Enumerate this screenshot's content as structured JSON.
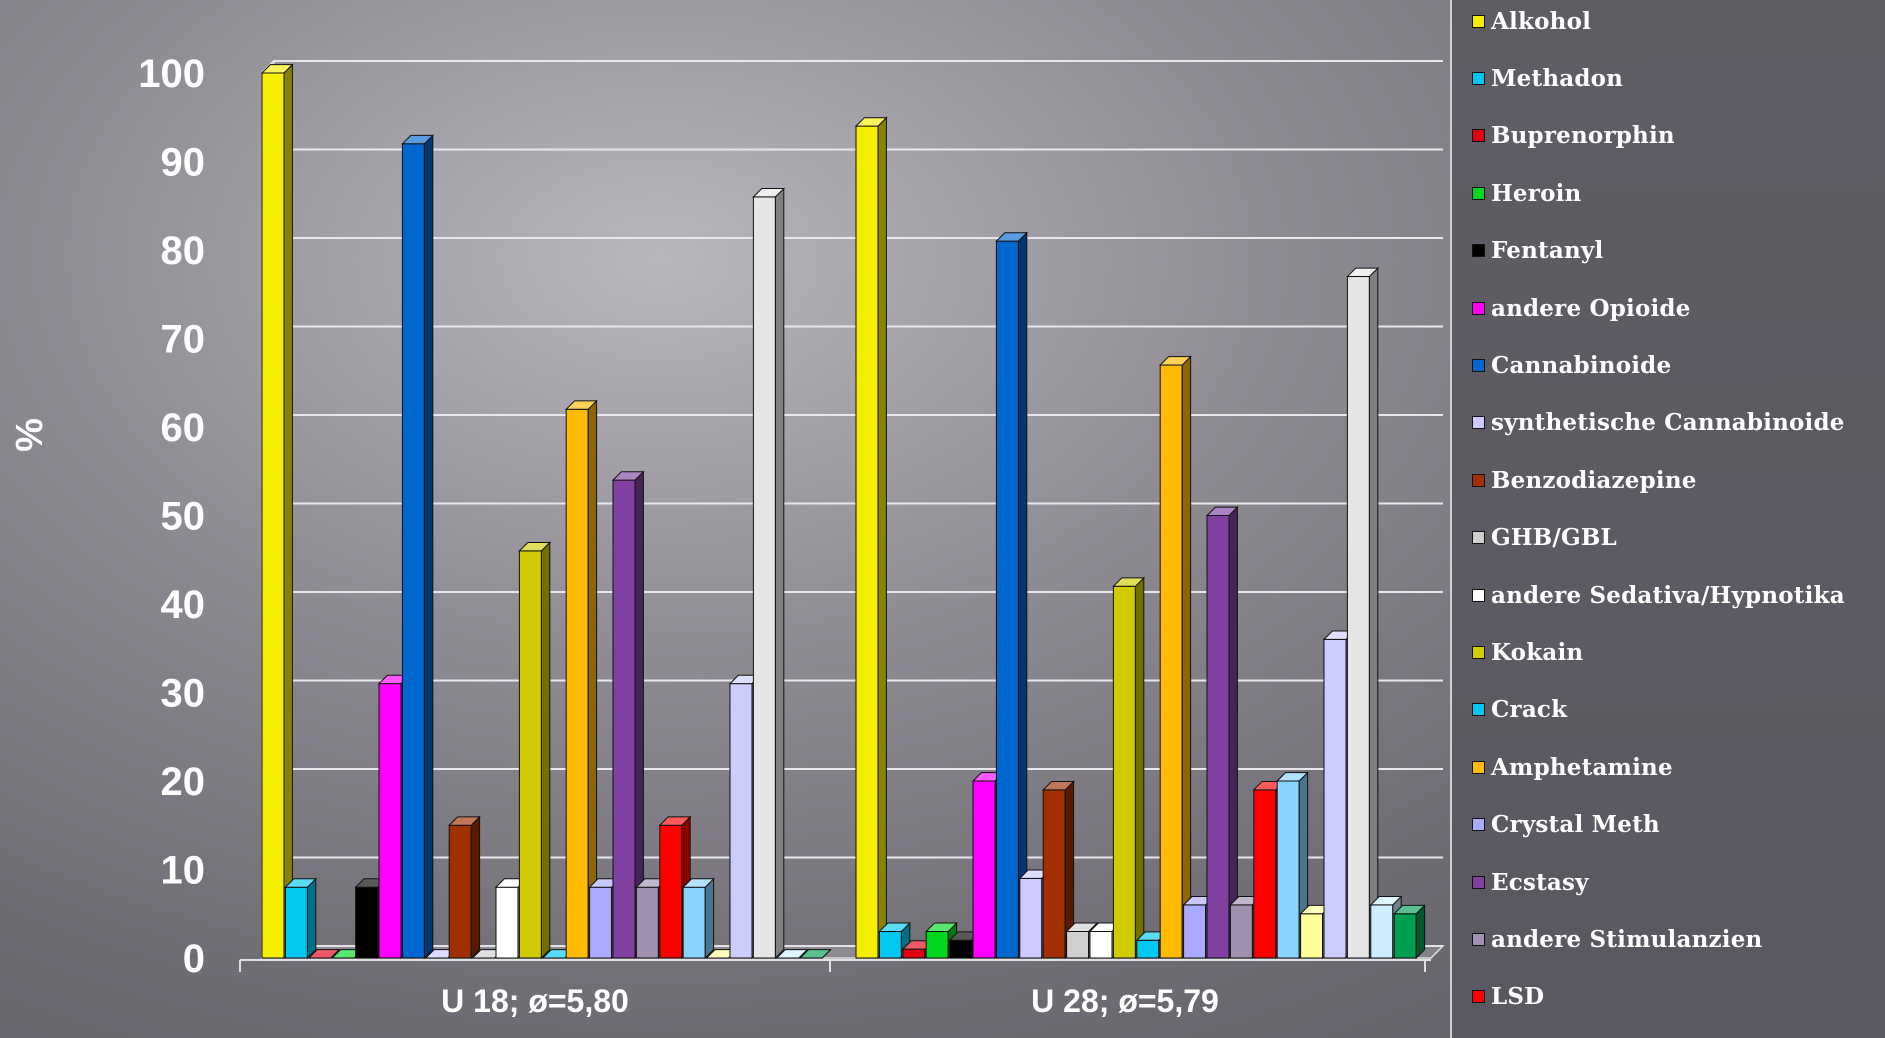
{
  "chart_data": {
    "type": "bar",
    "title": "",
    "xlabel": "",
    "ylabel": "%",
    "ylim": [
      0,
      100
    ],
    "yticks": [
      "0",
      "10",
      "20",
      "30",
      "40",
      "50",
      "60",
      "70",
      "80",
      "90",
      "100"
    ],
    "grid": true,
    "legend_position": "right",
    "categories": [
      "U 18; ø=5,80",
      "U 28; ø=5,79"
    ],
    "series": [
      {
        "name": "Alkohol",
        "color": "#f5ee00",
        "values": [
          100,
          94
        ]
      },
      {
        "name": "Methadon",
        "color": "#00c8f0",
        "values": [
          8,
          3
        ]
      },
      {
        "name": "Buprenorphin",
        "color": "#e00010",
        "values": [
          0,
          1
        ]
      },
      {
        "name": "Heroin",
        "color": "#00d820",
        "values": [
          0,
          3
        ]
      },
      {
        "name": "Fentanyl",
        "color": "#000000",
        "values": [
          8,
          2
        ]
      },
      {
        "name": "andere Opioide",
        "color": "#ff00ff",
        "values": [
          31,
          20
        ]
      },
      {
        "name": "Cannabinoide",
        "color": "#0066d0",
        "values": [
          92,
          81
        ]
      },
      {
        "name": "synthetische Cannabinoide",
        "color": "#cccaff",
        "values": [
          0,
          9
        ]
      },
      {
        "name": "Benzodiazepine",
        "color": "#a03000",
        "values": [
          15,
          19
        ]
      },
      {
        "name": "GHB/GBL",
        "color": "#cfcfcf",
        "values": [
          0,
          3
        ]
      },
      {
        "name": "andere Sedativa/Hypnotika",
        "color": "#ffffff",
        "values": [
          8,
          3
        ]
      },
      {
        "name": "Kokain",
        "color": "#d0cc00",
        "values": [
          46,
          42
        ]
      },
      {
        "name": "Crack",
        "color": "#00c8f0",
        "values": [
          0,
          2
        ]
      },
      {
        "name": "Amphetamine",
        "color": "#ffbb00",
        "values": [
          62,
          67
        ]
      },
      {
        "name": "Crystal Meth",
        "color": "#aaaaff",
        "values": [
          8,
          6
        ]
      },
      {
        "name": "Ecstasy",
        "color": "#8040a0",
        "values": [
          54,
          50
        ]
      },
      {
        "name": "andere Stimulanzien",
        "color": "#a090b0",
        "values": [
          8,
          6
        ]
      },
      {
        "name": "LSD",
        "color": "#ff0000",
        "values": [
          15,
          19
        ]
      },
      {
        "name": "",
        "color": "#88d4ff",
        "values": [
          8,
          20
        ]
      },
      {
        "name": "",
        "color": "#ffff99",
        "values": [
          0,
          5
        ]
      },
      {
        "name": "",
        "color": "#ccccff",
        "values": [
          31,
          36
        ]
      },
      {
        "name": "",
        "color": "#e6e6e6",
        "values": [
          86,
          77
        ]
      },
      {
        "name": "",
        "color": "#cceeff",
        "values": [
          0,
          6
        ]
      },
      {
        "name": "",
        "color": "#00a050",
        "values": [
          0,
          5
        ]
      }
    ]
  }
}
